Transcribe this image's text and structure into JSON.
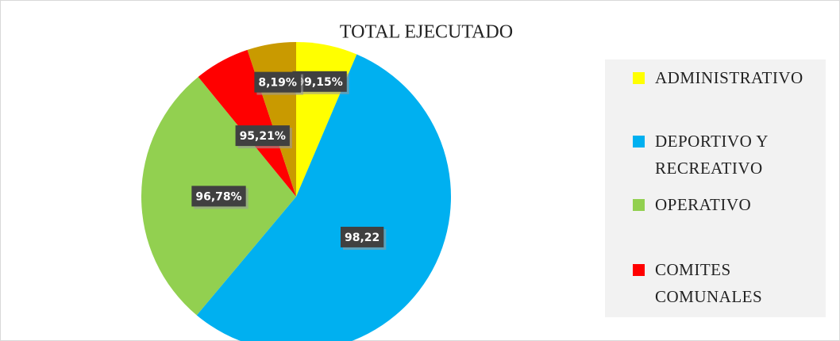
{
  "chart_data": {
    "type": "pie",
    "title": "TOTAL EJECUTADO",
    "categories": [
      "ADMINISTRATIVO",
      "DEPORTIVO Y RECREATIVO",
      "OPERATIVO",
      "COMITES COMUNALES",
      null
    ],
    "values": [
      6.4,
      54.7,
      28,
      5.8,
      5.1
    ],
    "data_labels": [
      "99,15%",
      "98,22",
      "96,78%",
      "95,21%",
      "8,19%"
    ],
    "colors": [
      "#ffff00",
      "#00b0f0",
      "#92d050",
      "#ff0000",
      "#c99a00"
    ],
    "legend": "right"
  }
}
